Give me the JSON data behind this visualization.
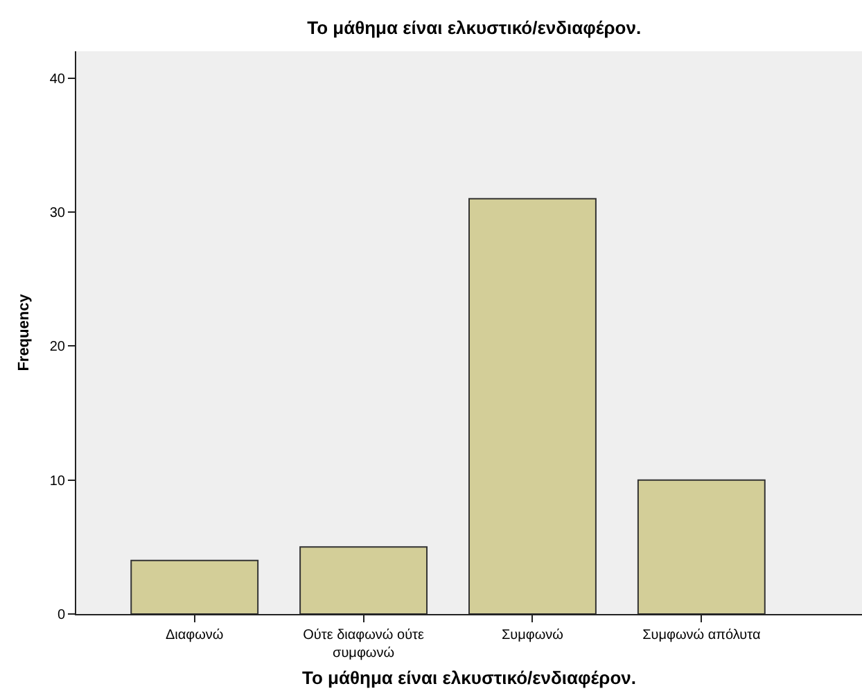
{
  "chart_data": {
    "type": "bar",
    "title": "Το μάθημα είναι ελκυστικό/ενδιαφέρον.",
    "xlabel": "Το μάθημα είναι ελκυστικό/ενδιαφέρον.",
    "ylabel": "Frequency",
    "categories": [
      "Διαφωνώ",
      "Ούτε διαφωνώ ούτε συμφωνώ",
      "Συμφωνώ",
      "Συμφωνώ απόλυτα"
    ],
    "values": [
      4,
      5,
      31,
      10
    ],
    "color": "#d3ce98",
    "ylim": [
      0,
      42
    ],
    "yticks": [
      0,
      10,
      20,
      30,
      40
    ],
    "grid": false,
    "legend": false
  }
}
